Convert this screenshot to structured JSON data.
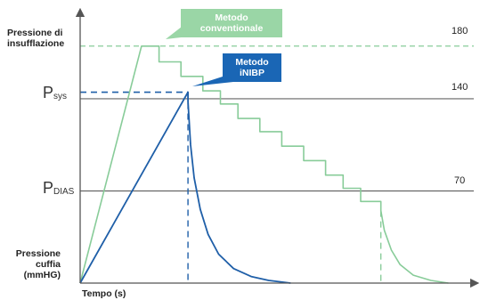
{
  "chart_data": {
    "type": "line",
    "x_axis_label": "Tempo (s)",
    "y_axis_label_top": [
      "Pressione di",
      "insufflazione"
    ],
    "y_axis_label_bottom": [
      "Pressione",
      "cuffia",
      "(mmHG)"
    ],
    "ref_lines": [
      {
        "id": "insufflation",
        "value": 180,
        "label": "180",
        "style": "dashed",
        "color": "#88cc99"
      },
      {
        "id": "sys",
        "value": 140,
        "label": "140",
        "axis_label_main": "P",
        "axis_label_sub": "sys",
        "color": "#666666"
      },
      {
        "id": "dias",
        "value": 70,
        "label": "70",
        "axis_label_main": "P",
        "axis_label_sub": "DIAS",
        "color": "#666666"
      }
    ],
    "series": [
      {
        "name": "Metodo conventionale",
        "label_lines": [
          "Metodo",
          "conventionale"
        ],
        "color": "#88cc99",
        "points": [
          [
            0,
            0
          ],
          [
            70,
            180
          ],
          [
            90,
            180
          ],
          [
            90,
            168
          ],
          [
            115,
            168
          ],
          [
            115,
            157
          ],
          [
            140,
            157
          ],
          [
            140,
            146
          ],
          [
            160,
            146
          ],
          [
            160,
            136
          ],
          [
            180,
            136
          ],
          [
            180,
            125
          ],
          [
            205,
            125
          ],
          [
            205,
            115
          ],
          [
            230,
            115
          ],
          [
            230,
            104
          ],
          [
            255,
            104
          ],
          [
            255,
            93
          ],
          [
            280,
            93
          ],
          [
            280,
            82
          ],
          [
            300,
            82
          ],
          [
            300,
            72
          ],
          [
            320,
            72
          ],
          [
            320,
            62
          ],
          [
            343,
            62
          ],
          [
            343,
            55
          ],
          [
            347,
            40
          ],
          [
            355,
            25
          ],
          [
            365,
            14
          ],
          [
            380,
            6
          ],
          [
            400,
            2
          ],
          [
            420,
            0
          ]
        ]
      },
      {
        "name": "Metodo iNIBP",
        "label_lines": [
          "Metodo",
          "iNIBP"
        ],
        "color": "#1f5fa8",
        "points": [
          [
            0,
            0
          ],
          [
            123,
            145
          ],
          [
            123,
            138
          ],
          [
            126,
            105
          ],
          [
            130,
            80
          ],
          [
            137,
            56
          ],
          [
            146,
            37
          ],
          [
            158,
            22
          ],
          [
            175,
            11
          ],
          [
            195,
            5
          ],
          [
            215,
            2
          ],
          [
            240,
            0
          ]
        ]
      }
    ],
    "drop_lines": [
      {
        "series": "Metodo iNIBP",
        "x": 123
      },
      {
        "series": "Metodo conventionale",
        "x": 343
      }
    ],
    "xlim": [
      0,
      450
    ],
    "ylim": [
      0,
      215
    ]
  }
}
